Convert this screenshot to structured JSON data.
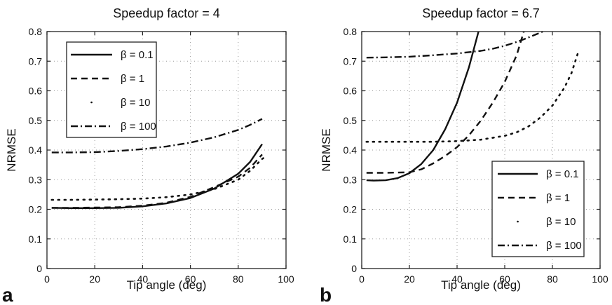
{
  "chart_data": [
    {
      "type": "line",
      "panel_label": "a",
      "title": "Speedup factor = 4",
      "xlabel": "Tip angle (deg)",
      "ylabel": "NRMSE",
      "xlim": [
        0,
        100
      ],
      "ylim": [
        0,
        0.8
      ],
      "xticks": [
        0,
        20,
        40,
        60,
        80,
        100
      ],
      "yticks": [
        0,
        0.1,
        0.2,
        0.3,
        0.4,
        0.5,
        0.6,
        0.7,
        0.8
      ],
      "xtick_labels": [
        "0",
        "20",
        "40",
        "60",
        "80",
        "100"
      ],
      "ytick_labels": [
        "0",
        "0.1",
        "0.2",
        "0.3",
        "0.4",
        "0.5",
        "0.6",
        "0.7",
        "0.8"
      ],
      "grid": true,
      "legend_position": "upper-left",
      "series": [
        {
          "name": "β = 0.1",
          "style": "solid",
          "x": [
            2,
            10,
            20,
            30,
            40,
            50,
            60,
            70,
            80,
            85,
            90
          ],
          "y": [
            0.205,
            0.204,
            0.204,
            0.205,
            0.21,
            0.22,
            0.238,
            0.27,
            0.32,
            0.36,
            0.42
          ]
        },
        {
          "name": "β = 1",
          "style": "dashed",
          "x": [
            2,
            10,
            20,
            30,
            40,
            50,
            60,
            70,
            80,
            85,
            90
          ],
          "y": [
            0.205,
            0.205,
            0.206,
            0.207,
            0.212,
            0.222,
            0.242,
            0.275,
            0.31,
            0.34,
            0.385
          ]
        },
        {
          "name": "β = 10",
          "style": "dotted",
          "x": [
            2,
            10,
            20,
            30,
            40,
            50,
            60,
            70,
            80,
            85,
            90,
            92
          ],
          "y": [
            0.232,
            0.232,
            0.233,
            0.234,
            0.236,
            0.241,
            0.25,
            0.268,
            0.3,
            0.33,
            0.37,
            0.38
          ]
        },
        {
          "name": "β = 100",
          "style": "dashdot",
          "x": [
            2,
            10,
            20,
            30,
            40,
            50,
            60,
            70,
            80,
            85,
            90
          ],
          "y": [
            0.392,
            0.392,
            0.393,
            0.397,
            0.403,
            0.412,
            0.425,
            0.443,
            0.468,
            0.485,
            0.505
          ]
        }
      ]
    },
    {
      "type": "line",
      "panel_label": "b",
      "title": "Speedup factor = 6.7",
      "xlabel": "Tip angle (deg)",
      "ylabel": "NRMSE",
      "xlim": [
        0,
        100
      ],
      "ylim": [
        0,
        0.8
      ],
      "xticks": [
        0,
        20,
        40,
        60,
        80,
        100
      ],
      "yticks": [
        0,
        0.1,
        0.2,
        0.3,
        0.4,
        0.5,
        0.6,
        0.7,
        0.8
      ],
      "xtick_labels": [
        "0",
        "20",
        "40",
        "60",
        "80",
        "100"
      ],
      "ytick_labels": [
        "0",
        "0.1",
        "0.2",
        "0.3",
        "0.4",
        "0.5",
        "0.6",
        "0.7",
        "0.8"
      ],
      "grid": true,
      "legend_position": "lower-right",
      "series": [
        {
          "name": "β = 0.1",
          "style": "solid",
          "x": [
            2,
            5,
            10,
            15,
            20,
            25,
            30,
            35,
            40,
            45,
            49
          ],
          "y": [
            0.298,
            0.297,
            0.298,
            0.305,
            0.322,
            0.353,
            0.4,
            0.47,
            0.56,
            0.68,
            0.8
          ]
        },
        {
          "name": "β = 1",
          "style": "dashed",
          "x": [
            2,
            10,
            20,
            25,
            30,
            35,
            40,
            45,
            50,
            55,
            60,
            65,
            68
          ],
          "y": [
            0.323,
            0.323,
            0.325,
            0.335,
            0.355,
            0.38,
            0.41,
            0.45,
            0.5,
            0.56,
            0.63,
            0.72,
            0.8
          ]
        },
        {
          "name": "β = 10",
          "style": "dotted",
          "x": [
            2,
            10,
            20,
            30,
            40,
            50,
            60,
            65,
            70,
            75,
            80,
            85,
            88,
            91
          ],
          "y": [
            0.428,
            0.428,
            0.428,
            0.428,
            0.43,
            0.435,
            0.448,
            0.46,
            0.48,
            0.51,
            0.55,
            0.61,
            0.66,
            0.735
          ]
        },
        {
          "name": "β = 100",
          "style": "dashdot",
          "x": [
            2,
            10,
            20,
            30,
            40,
            50,
            55,
            60,
            65,
            70,
            76
          ],
          "y": [
            0.712,
            0.713,
            0.715,
            0.72,
            0.726,
            0.735,
            0.742,
            0.752,
            0.765,
            0.78,
            0.8
          ]
        }
      ]
    }
  ]
}
